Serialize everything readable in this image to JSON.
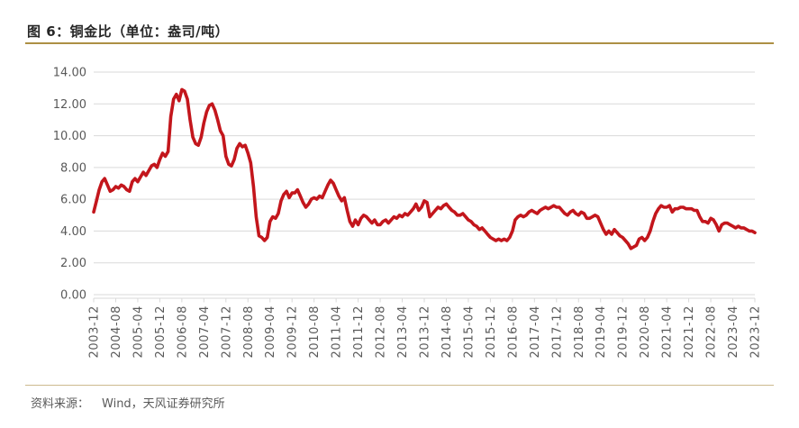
{
  "header": {
    "title": "图 6：铜金比（单位：盎司/吨）"
  },
  "footer": {
    "source_label": "资料来源：",
    "source_text": "Wind，天风证券研究所"
  },
  "colors": {
    "line": "#C3161C",
    "grid": "#D9D9D9",
    "axis_text": "#595959",
    "title_text": "#262626",
    "title_rule": "#AD9044",
    "footer_rule": "#CDBA8E",
    "background": "#FFFFFF"
  },
  "chart_data": {
    "type": "line",
    "title": "铜金比",
    "unit": "盎司/吨",
    "x_frequency": "monthly",
    "x_start": "2003-12",
    "x_end": "2023-12",
    "x_tick_labels": [
      "2003-12",
      "2004-08",
      "2005-04",
      "2005-12",
      "2006-08",
      "2007-04",
      "2007-12",
      "2008-08",
      "2009-04",
      "2009-12",
      "2010-08",
      "2011-04",
      "2011-12",
      "2012-08",
      "2013-04",
      "2013-12",
      "2014-08",
      "2015-04",
      "2015-12",
      "2016-08",
      "2017-04",
      "2017-12",
      "2018-08",
      "2019-04",
      "2019-12",
      "2020-08",
      "2021-04",
      "2021-12",
      "2022-08",
      "2023-04",
      "2023-12"
    ],
    "y_ticks": [
      0,
      2,
      4,
      6,
      8,
      10,
      12,
      14
    ],
    "ylim": [
      0,
      14
    ],
    "y_tick_format": "0.00",
    "grid": "horizontal",
    "legend": "none",
    "series": [
      {
        "name": "铜金比",
        "color": "#C3161C",
        "values": [
          5.2,
          5.9,
          6.6,
          7.1,
          7.3,
          6.9,
          6.5,
          6.6,
          6.8,
          6.7,
          6.9,
          6.8,
          6.6,
          6.5,
          7.1,
          7.3,
          7.1,
          7.4,
          7.7,
          7.5,
          7.8,
          8.1,
          8.2,
          8.0,
          8.5,
          8.9,
          8.7,
          9.0,
          11.2,
          12.3,
          12.6,
          12.2,
          12.9,
          12.8,
          12.3,
          11.0,
          9.9,
          9.5,
          9.4,
          9.9,
          10.8,
          11.5,
          11.9,
          12.0,
          11.6,
          11.0,
          10.3,
          10.0,
          8.7,
          8.2,
          8.1,
          8.5,
          9.2,
          9.5,
          9.3,
          9.4,
          8.9,
          8.3,
          6.8,
          4.9,
          3.7,
          3.6,
          3.4,
          3.6,
          4.6,
          4.9,
          4.8,
          5.1,
          5.9,
          6.3,
          6.5,
          6.1,
          6.4,
          6.4,
          6.6,
          6.2,
          5.8,
          5.5,
          5.7,
          6.0,
          6.1,
          6.0,
          6.2,
          6.1,
          6.5,
          6.9,
          7.2,
          7.0,
          6.6,
          6.2,
          5.9,
          6.1,
          5.3,
          4.6,
          4.3,
          4.7,
          4.4,
          4.8,
          5.0,
          4.9,
          4.7,
          4.5,
          4.7,
          4.4,
          4.4,
          4.6,
          4.7,
          4.5,
          4.7,
          4.9,
          4.8,
          5.0,
          4.9,
          5.1,
          5.0,
          5.2,
          5.4,
          5.7,
          5.3,
          5.5,
          5.9,
          5.8,
          4.9,
          5.1,
          5.3,
          5.5,
          5.4,
          5.6,
          5.7,
          5.5,
          5.3,
          5.2,
          5.0,
          5.0,
          5.1,
          4.9,
          4.7,
          4.6,
          4.4,
          4.3,
          4.1,
          4.2,
          4.0,
          3.8,
          3.6,
          3.5,
          3.4,
          3.5,
          3.4,
          3.5,
          3.4,
          3.6,
          4.0,
          4.7,
          4.9,
          5.0,
          4.9,
          5.0,
          5.2,
          5.3,
          5.2,
          5.1,
          5.3,
          5.4,
          5.5,
          5.4,
          5.5,
          5.6,
          5.5,
          5.5,
          5.3,
          5.1,
          5.0,
          5.2,
          5.3,
          5.1,
          5.0,
          5.2,
          5.1,
          4.8,
          4.8,
          4.9,
          5.0,
          4.9,
          4.5,
          4.1,
          3.8,
          4.0,
          3.8,
          4.1,
          3.9,
          3.7,
          3.6,
          3.4,
          3.2,
          2.9,
          3.0,
          3.1,
          3.5,
          3.6,
          3.4,
          3.6,
          4.0,
          4.6,
          5.1,
          5.4,
          5.6,
          5.5,
          5.5,
          5.6,
          5.2,
          5.4,
          5.4,
          5.5,
          5.5,
          5.4,
          5.4,
          5.4,
          5.3,
          5.3,
          4.9,
          4.6,
          4.6,
          4.5,
          4.8,
          4.7,
          4.4,
          4.0,
          4.4,
          4.5,
          4.5,
          4.4,
          4.3,
          4.2,
          4.3,
          4.2,
          4.2,
          4.1,
          4.0,
          4.0,
          3.9
        ]
      }
    ]
  }
}
